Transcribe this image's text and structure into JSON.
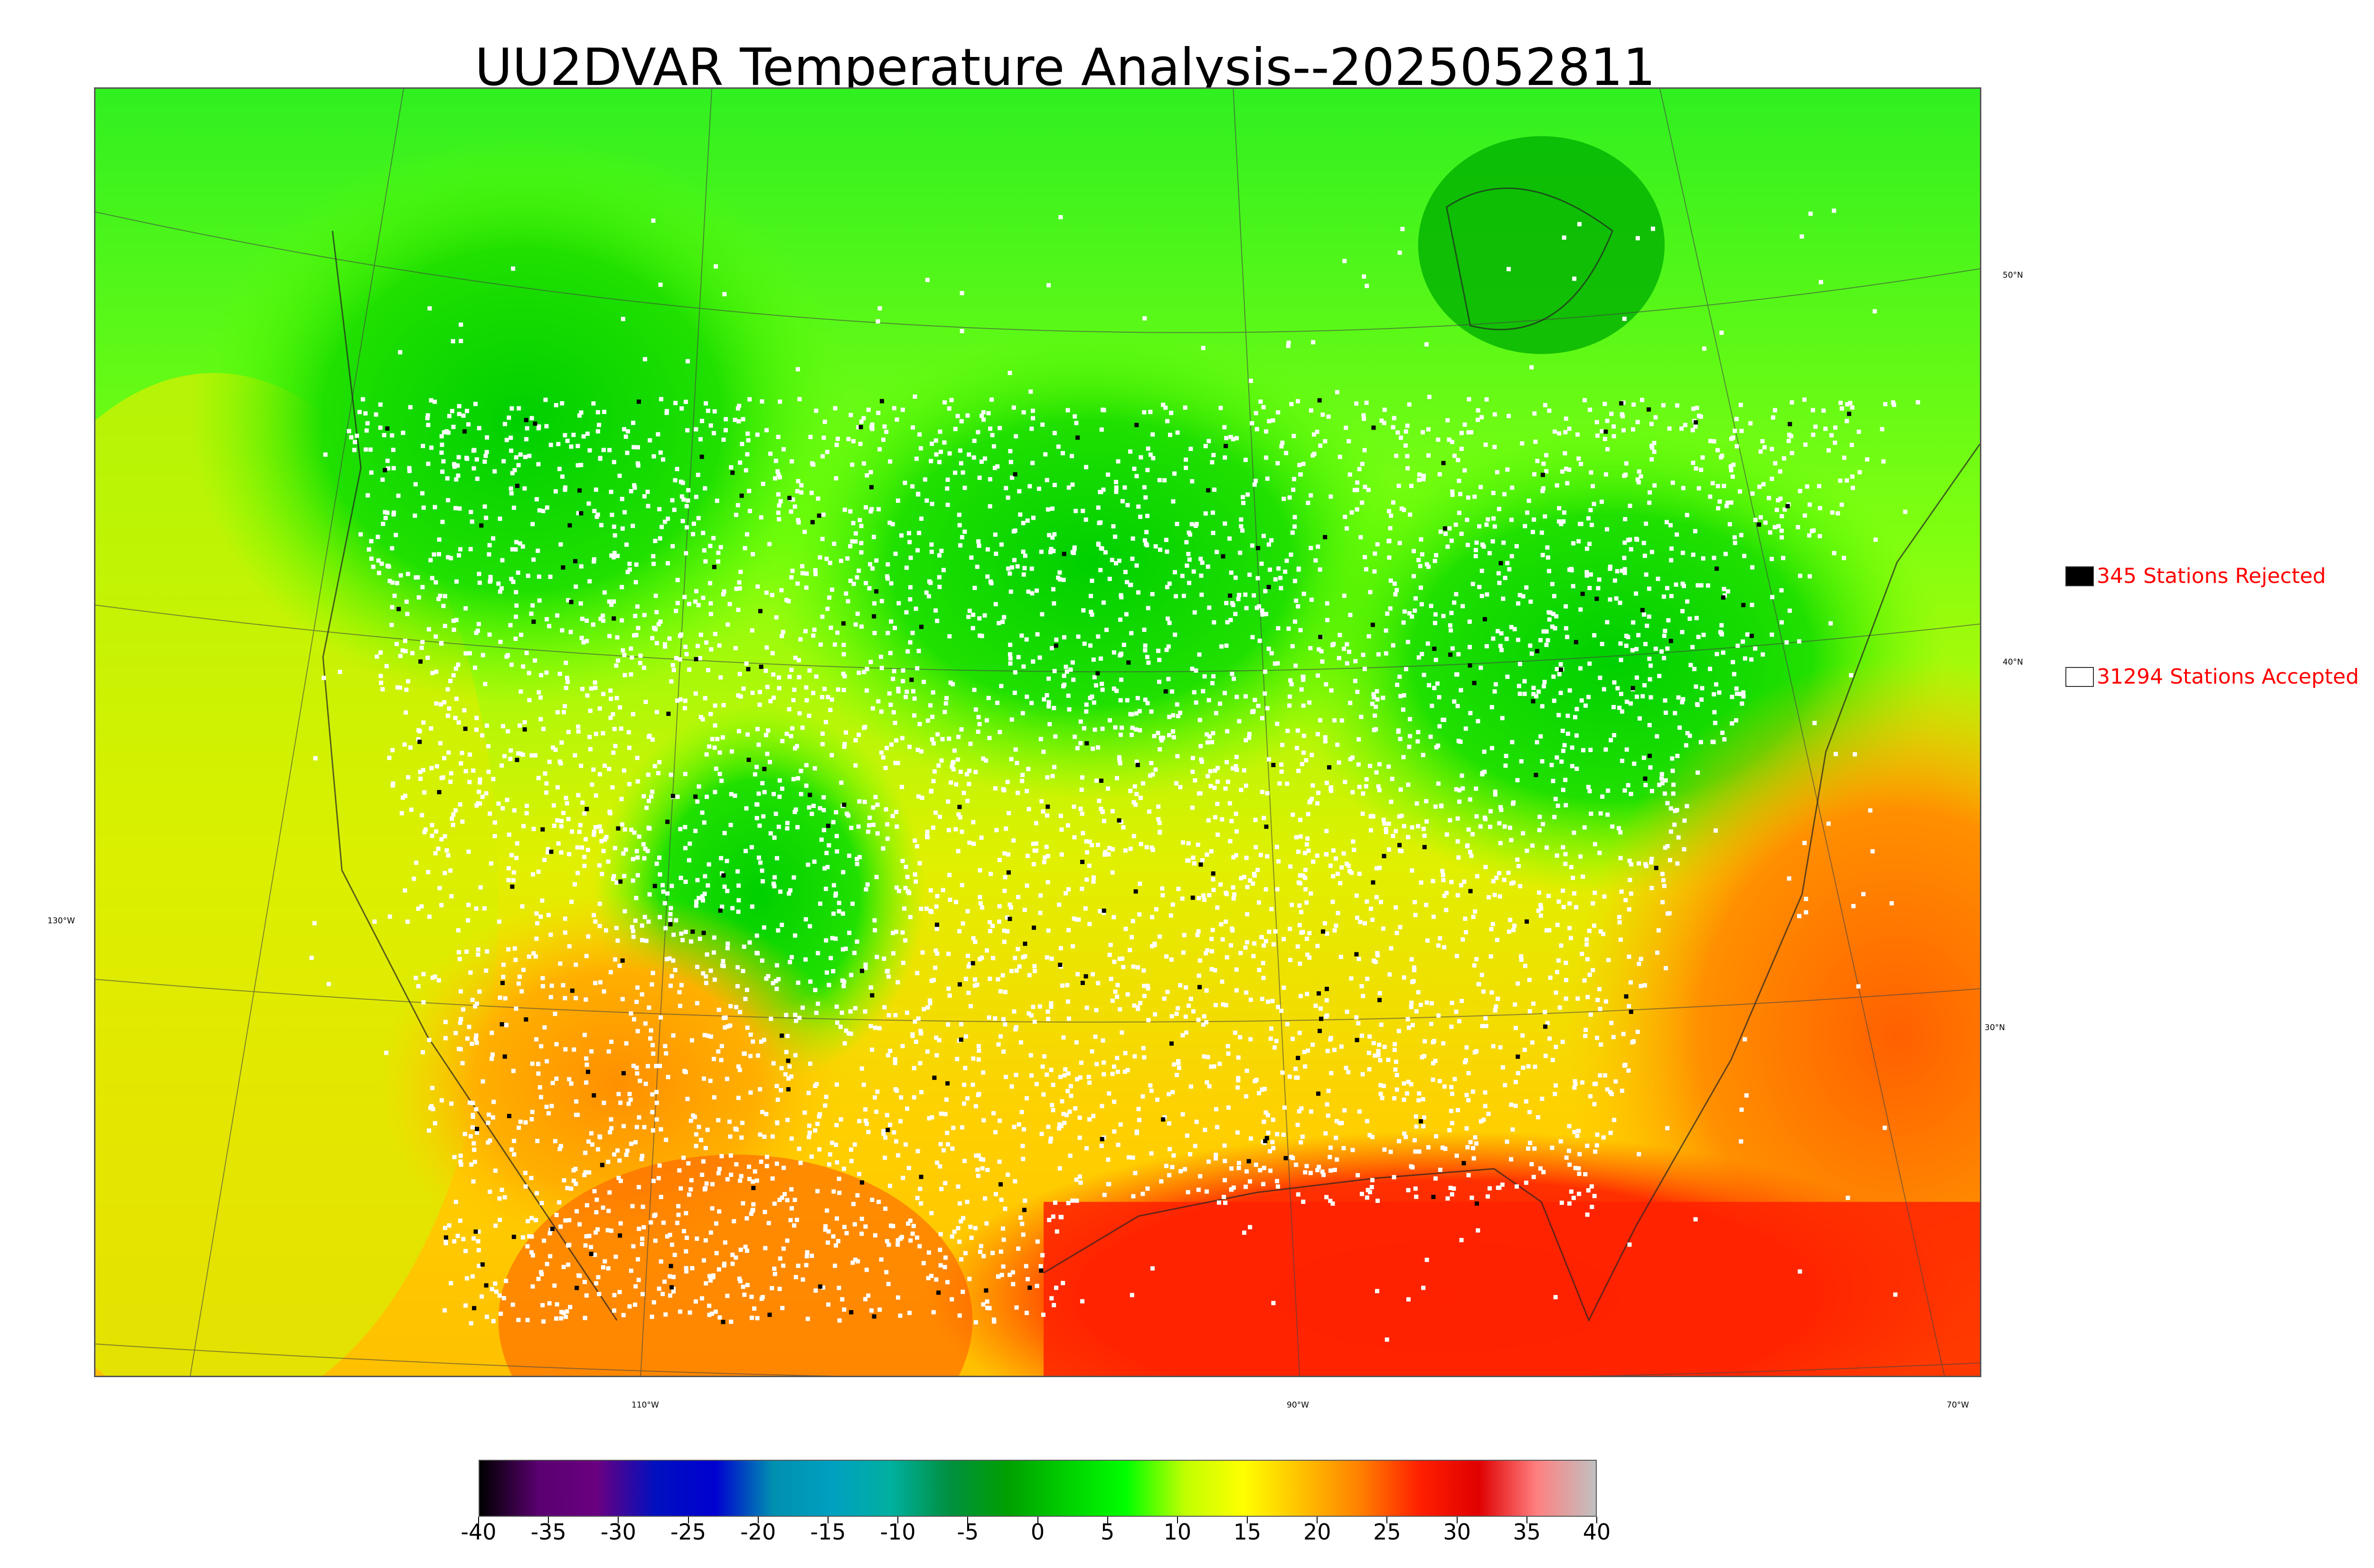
{
  "title": "UU2DVAR Temperature Analysis--2025052811",
  "lat_labels": [
    "50°N",
    "40°N",
    "30°N"
  ],
  "lon_labels": [
    "130°W",
    "110°W",
    "90°W",
    "70°W"
  ],
  "legend": {
    "rejected": {
      "label": "345 Stations Rejected",
      "swatch_color": "#000000"
    },
    "accepted": {
      "label": "31294 Stations Accepted",
      "swatch_color": "#ffffff"
    }
  },
  "colorbar": {
    "ticks": [
      "-40",
      "-35",
      "-30",
      "-25",
      "-20",
      "-15",
      "-10",
      "-5",
      "0",
      "5",
      "10",
      "15",
      "20",
      "25",
      "30",
      "35",
      "40"
    ],
    "stops": [
      "#000000",
      "#5a0070",
      "#6a0080",
      "#0010c0",
      "#0000d0",
      "#0090b0",
      "#00a0c0",
      "#00b0a0",
      "#009040",
      "#00a000",
      "#00d000",
      "#00ff00",
      "#c0ff00",
      "#ffff00",
      "#ffc000",
      "#ff8000",
      "#ff2000",
      "#e00000",
      "#ff8080",
      "#c0c0c0"
    ]
  },
  "colors": {
    "cold": "#00c000",
    "mild": "#c8f000",
    "warm": "#ffd000",
    "hot": "#ff2000",
    "station_accepted": "#ffffff",
    "station_rejected": "#000000"
  }
}
